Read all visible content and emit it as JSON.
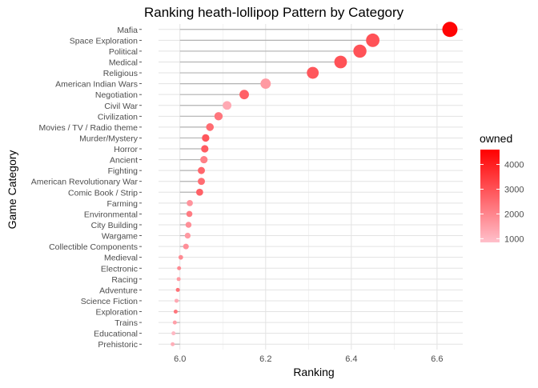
{
  "chart_data": {
    "type": "lollipop",
    "title": "Ranking heath-lollipop Pattern by Category",
    "xlabel": "Ranking",
    "ylabel": "Game Category",
    "xlim": [
      5.95,
      6.66
    ],
    "x_ticks": [
      6.0,
      6.2,
      6.4,
      6.6
    ],
    "x_tick_labels": [
      "6.0",
      "6.2",
      "6.4",
      "6.6"
    ],
    "grid": true,
    "baseline": 6.0,
    "categories": [
      "Mafia",
      "Space Exploration",
      "Political",
      "Medical",
      "Religious",
      "American Indian Wars",
      "Negotiation",
      "Civil War",
      "Civilization",
      "Movies / TV / Radio theme",
      "Murder/Mystery",
      "Horror",
      "Ancient",
      "Fighting",
      "American Revolutionary War",
      "Comic Book / Strip",
      "Farming",
      "Environmental",
      "City Building",
      "Wargame",
      "Collectible Components",
      "Medieval",
      "Electronic",
      "Racing",
      "Adventure",
      "Science Fiction",
      "Exploration",
      "Trains",
      "Educational",
      "Prehistoric"
    ],
    "values": [
      6.63,
      6.45,
      6.42,
      6.375,
      6.31,
      6.2,
      6.15,
      6.11,
      6.09,
      6.07,
      6.06,
      6.058,
      6.056,
      6.05,
      6.05,
      6.046,
      6.023,
      6.022,
      6.02,
      6.018,
      6.014,
      6.002,
      5.998,
      5.997,
      5.995,
      5.992,
      5.99,
      5.988,
      5.985,
      5.983
    ],
    "owned": [
      4500,
      3000,
      3000,
      3000,
      2900,
      1600,
      2700,
      1300,
      2300,
      2500,
      2900,
      2800,
      2100,
      2600,
      2500,
      2700,
      1700,
      2200,
      1800,
      1600,
      1800,
      1900,
      1900,
      1600,
      2400,
      1300,
      2300,
      1500,
      1000,
      1200
    ],
    "color_legend": {
      "title": "owned",
      "min": 850,
      "max": 4600,
      "ticks": [
        1000,
        2000,
        3000,
        4000
      ],
      "tick_labels": [
        "1000",
        "2000",
        "3000",
        "4000"
      ],
      "low_color": "#ffc0cb",
      "high_color": "#ff0000"
    },
    "legend_position": "right"
  }
}
